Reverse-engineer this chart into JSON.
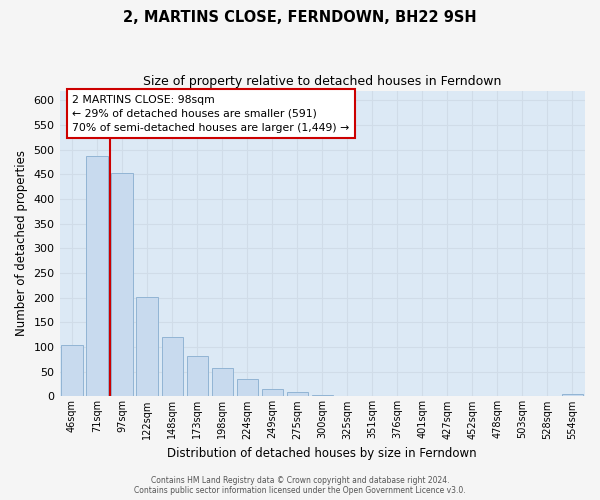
{
  "title": "2, MARTINS CLOSE, FERNDOWN, BH22 9SH",
  "subtitle": "Size of property relative to detached houses in Ferndown",
  "xlabel": "Distribution of detached houses by size in Ferndown",
  "ylabel": "Number of detached properties",
  "bar_labels": [
    "46sqm",
    "71sqm",
    "97sqm",
    "122sqm",
    "148sqm",
    "173sqm",
    "198sqm",
    "224sqm",
    "249sqm",
    "275sqm",
    "300sqm",
    "325sqm",
    "351sqm",
    "376sqm",
    "401sqm",
    "427sqm",
    "452sqm",
    "478sqm",
    "503sqm",
    "528sqm",
    "554sqm"
  ],
  "bar_values": [
    105,
    488,
    453,
    202,
    121,
    82,
    57,
    36,
    15,
    8,
    3,
    1,
    0,
    0,
    0,
    0,
    0,
    0,
    0,
    0,
    5
  ],
  "bar_color": "#c8daee",
  "bar_edge_color": "#92b4d4",
  "vline_x_pos": 1.5,
  "vline_color": "#cc0000",
  "annotation_line1": "2 MARTINS CLOSE: 98sqm",
  "annotation_line2": "← 29% of detached houses are smaller (591)",
  "annotation_line3": "70% of semi-detached houses are larger (1,449) →",
  "annotation_box_color": "#ffffff",
  "annotation_box_edge": "#cc0000",
  "ylim": [
    0,
    620
  ],
  "yticks": [
    0,
    50,
    100,
    150,
    200,
    250,
    300,
    350,
    400,
    450,
    500,
    550,
    600
  ],
  "footer_line1": "Contains HM Land Registry data © Crown copyright and database right 2024.",
  "footer_line2": "Contains public sector information licensed under the Open Government Licence v3.0.",
  "grid_color": "#d0dce8",
  "bg_color": "#dce9f5",
  "fig_bg_color": "#f5f5f5"
}
